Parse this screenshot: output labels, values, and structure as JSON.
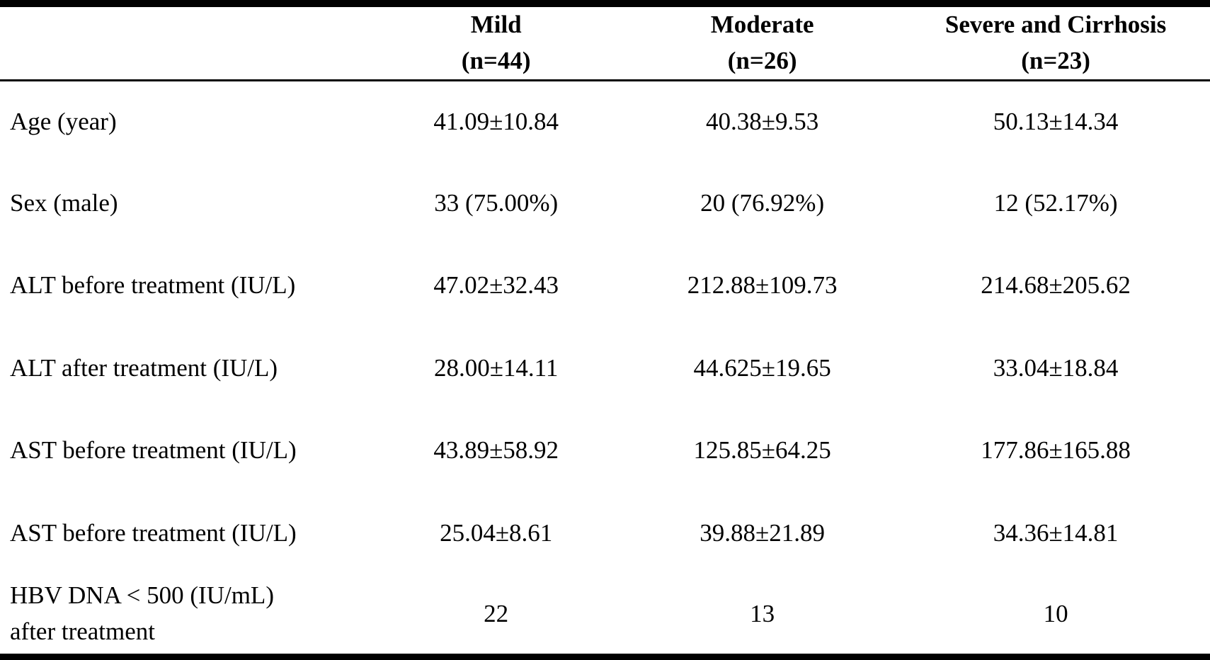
{
  "page": {
    "background_color": "#ffffff",
    "text_color": "#000000",
    "rule_color": "#000000"
  },
  "table": {
    "headers": [
      {
        "label": ""
      },
      {
        "label": "Mild\n(n=44)"
      },
      {
        "label": "Moderate\n(n=26)"
      },
      {
        "label": "Severe and Cirrhosis\n(n=23)"
      }
    ],
    "rows": [
      {
        "label": "Age (year)",
        "values": [
          "41.09±10.84",
          "40.38±9.53",
          "50.13±14.34"
        ]
      },
      {
        "label": "Sex (male)",
        "values": [
          "33 (75.00%)",
          "20 (76.92%)",
          "12 (52.17%)"
        ]
      },
      {
        "label": "ALT before treatment (IU/L)",
        "values": [
          "47.02±32.43",
          "212.88±109.73",
          "214.68±205.62"
        ]
      },
      {
        "label": "ALT after treatment (IU/L)",
        "values": [
          "28.00±14.11",
          "44.625±19.65",
          "33.04±18.84"
        ]
      },
      {
        "label": "AST before treatment (IU/L)",
        "values": [
          "43.89±58.92",
          "125.85±64.25",
          "177.86±165.88"
        ]
      },
      {
        "label": "AST before treatment (IU/L)",
        "values": [
          "25.04±8.61",
          "39.88±21.89",
          "34.36±14.81"
        ]
      },
      {
        "label": "HBV DNA < 500 (IU/mL)\nafter treatment",
        "values": [
          "22",
          "13",
          "10"
        ]
      }
    ]
  }
}
